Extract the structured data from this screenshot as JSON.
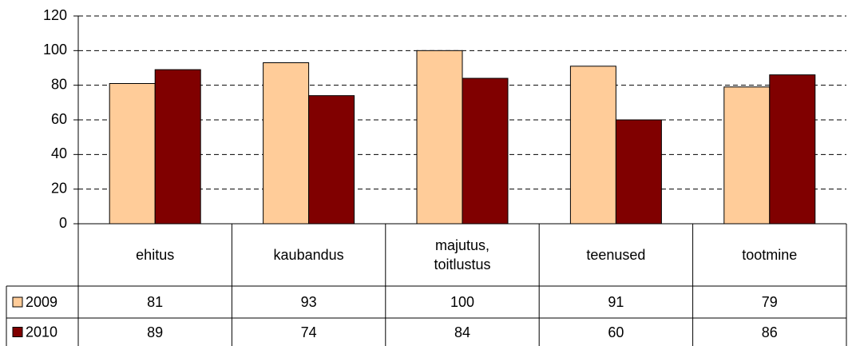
{
  "chart_data": {
    "type": "bar",
    "categories": [
      "ehitus",
      "kaubandus",
      "majutus, toitlustus",
      "teenused",
      "tootmine"
    ],
    "series": [
      {
        "name": "2009",
        "color": "#ffcc99",
        "values": [
          81,
          93,
          100,
          91,
          79
        ]
      },
      {
        "name": "2010",
        "color": "#800000",
        "values": [
          89,
          74,
          84,
          60,
          86
        ]
      }
    ],
    "ylim": [
      0,
      120
    ],
    "yticks": [
      0,
      20,
      40,
      60,
      80,
      100,
      120
    ],
    "grid": true
  }
}
